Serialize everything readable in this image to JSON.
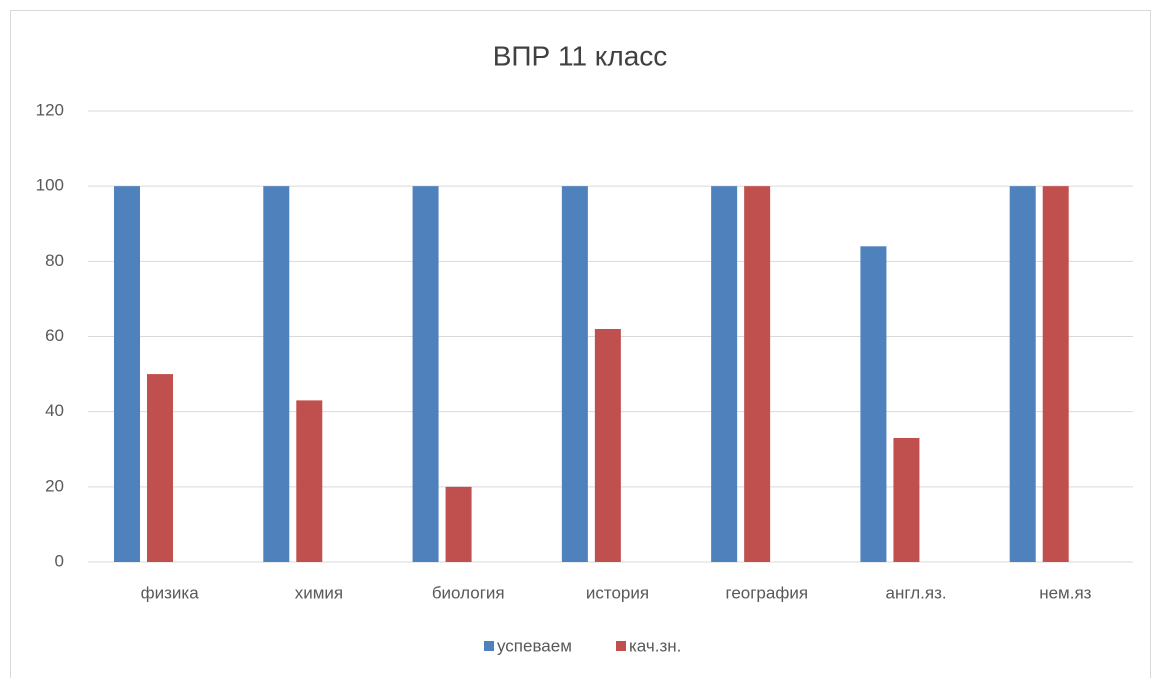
{
  "chart_data": {
    "type": "bar",
    "title": "ВПР 11 класс",
    "categories": [
      "физика",
      "химия",
      "биология",
      "история",
      "география",
      "англ.яз.",
      "нем.яз"
    ],
    "series": [
      {
        "name": "успеваем",
        "color": "#4f81bd",
        "values": [
          100,
          100,
          100,
          100,
          100,
          84,
          100
        ]
      },
      {
        "name": "кач.зн.",
        "color": "#c0504d",
        "values": [
          50,
          43,
          20,
          62,
          100,
          33,
          100
        ]
      }
    ],
    "ylim": [
      0,
      120
    ],
    "yticks": [
      0,
      20,
      40,
      60,
      80,
      100,
      120
    ],
    "grid": true,
    "legend": "bottom"
  }
}
